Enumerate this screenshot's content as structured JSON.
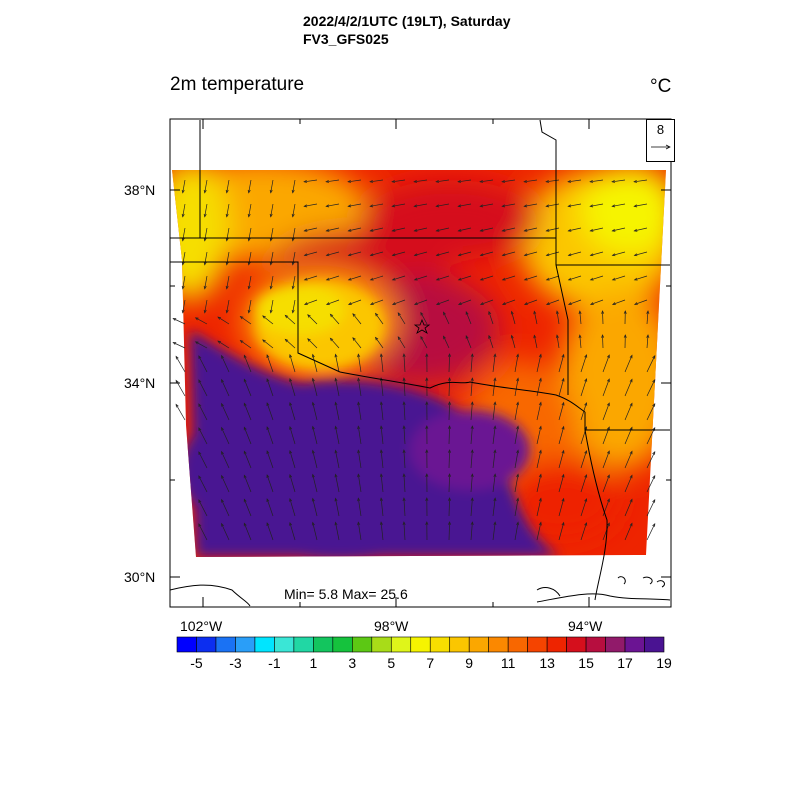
{
  "header": {
    "title_line1": "2022/4/2/1UTC (19LT), Saturday",
    "title_line2": "FV3_GFS025",
    "variable": "2m temperature",
    "unit": "°C"
  },
  "stats": {
    "text": "Min= 5.8 Max= 25.6",
    "min": 5.8,
    "max": 25.6
  },
  "axes": {
    "lat_labels": [
      "38°N",
      "34°N",
      "30°N"
    ],
    "lon_labels": [
      "102°W",
      "98°W",
      "94°W"
    ]
  },
  "vector_reference": {
    "value": "8"
  },
  "colorbar": {
    "labels": [
      "-5",
      "-3",
      "-1",
      "1",
      "3",
      "5",
      "7",
      "9",
      "11",
      "13",
      "15",
      "17",
      "19"
    ],
    "colors": [
      "#0000ff",
      "#0c2ef0",
      "#1a72f4",
      "#2a9ef8",
      "#00e5ff",
      "#3ae6d6",
      "#21d7a4",
      "#13c55e",
      "#15c23d",
      "#5cc814",
      "#a8dc18",
      "#dff51a",
      "#f6f400",
      "#f7de00",
      "#fbc600",
      "#fba700",
      "#fb8800",
      "#f86700",
      "#f54400",
      "#ee2400",
      "#d50f1c",
      "#b70e3f",
      "#911a6a",
      "#6b1493",
      "#4a1392"
    ],
    "field_palette": {
      "cool": "#4a1392",
      "mid": "#ee2400",
      "warm": "#fba700",
      "hot": "#f6f400"
    }
  }
}
